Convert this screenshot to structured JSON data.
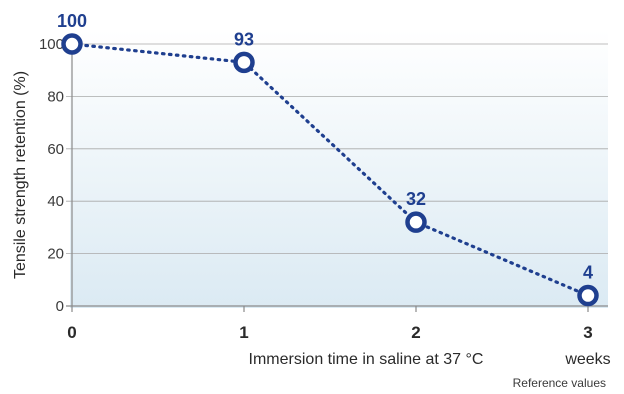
{
  "chart_data": {
    "type": "line",
    "x": [
      0,
      1,
      2,
      3
    ],
    "x_tick_labels": [
      "0",
      "1",
      "2",
      "3"
    ],
    "x_unit": "weeks",
    "xlabel": "Immersion time in saline at 37 °C",
    "ylabel": "Tensile strength retention (%)",
    "ylim": [
      0,
      100
    ],
    "y_ticks": [
      0,
      20,
      40,
      60,
      80,
      100
    ],
    "grid": "horizontal",
    "series": [
      {
        "values": [
          100,
          93,
          32,
          4
        ],
        "data_labels": [
          "100",
          "93",
          "32",
          "4"
        ]
      }
    ],
    "note": "Reference values",
    "colors": {
      "line": "#1f3f8f",
      "labels": "#1f3f8f",
      "plot_bg_top": "#ffffff",
      "plot_bg_bottom": "#dbeaf3"
    }
  }
}
